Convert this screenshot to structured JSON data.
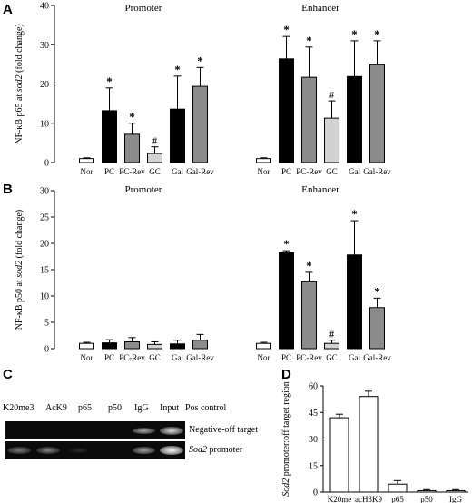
{
  "panels": {
    "a": "A",
    "b": "B",
    "c": "C",
    "d": "D"
  },
  "shared_categories": [
    "Nor",
    "PC",
    "PC-Rev",
    "GC",
    "Gal",
    "Gal-Rev"
  ],
  "colors": {
    "Nor": "#ffffff",
    "PC": "#000000",
    "PC-Rev": "#8c8c8c",
    "GC": "#d2d2d2",
    "Gal": "#000000",
    "Gal-Rev": "#8c8c8c",
    "white": "#ffffff"
  },
  "chart_data": [
    {
      "panel": "A",
      "type": "bar",
      "ylabel": "NF-κB p65 at sod2 (fold change)",
      "ylim": [
        0,
        40
      ],
      "yticks": [
        0,
        10,
        20,
        30,
        40
      ],
      "groups": [
        {
          "name": "Promoter",
          "categories": [
            "Nor",
            "PC",
            "PC-Rev",
            "GC",
            "Gal",
            "Gal-Rev"
          ],
          "values": [
            1.0,
            13.2,
            7.2,
            2.3,
            13.6,
            19.4
          ],
          "errors": [
            0.2,
            5.8,
            2.8,
            1.7,
            8.4,
            4.8
          ],
          "annotations": [
            "",
            "*",
            "*",
            "#",
            "*",
            "*"
          ]
        },
        {
          "name": "Enhancer",
          "categories": [
            "Nor",
            "PC",
            "PC-Rev",
            "GC",
            "Gal",
            "Gal-Rev"
          ],
          "values": [
            1.0,
            26.4,
            21.7,
            11.3,
            21.9,
            24.9
          ],
          "errors": [
            0.2,
            5.7,
            7.7,
            4.4,
            9.1,
            6.1
          ],
          "annotations": [
            "",
            "*",
            "*",
            "#",
            "*",
            "*"
          ]
        }
      ]
    },
    {
      "panel": "B",
      "type": "bar",
      "ylabel": "NF-κB p50 at sod2 (fold change)",
      "ylim": [
        0,
        30
      ],
      "yticks": [
        0,
        5,
        10,
        15,
        20,
        25,
        30
      ],
      "groups": [
        {
          "name": "Promoter",
          "categories": [
            "Nor",
            "PC",
            "PC-Rev",
            "GC",
            "Gal",
            "Gal-Rev"
          ],
          "values": [
            1.0,
            1.1,
            1.3,
            0.8,
            0.9,
            1.6
          ],
          "errors": [
            0.2,
            0.6,
            0.8,
            0.5,
            0.7,
            1.1
          ],
          "annotations": [
            "",
            "",
            "",
            "",
            "",
            ""
          ]
        },
        {
          "name": "Enhancer",
          "categories": [
            "Nor",
            "PC",
            "PC-Rev",
            "GC",
            "Gal",
            "Gal-Rev"
          ],
          "values": [
            1.0,
            18.2,
            12.7,
            1.0,
            17.8,
            7.8
          ],
          "errors": [
            0.2,
            0.4,
            1.8,
            0.6,
            6.5,
            1.8
          ],
          "annotations": [
            "",
            "*",
            "*",
            "#",
            "*",
            "*"
          ]
        }
      ]
    },
    {
      "panel": "D",
      "type": "bar",
      "ylabel": "Sod2 promoter:off target region",
      "ylim": [
        0,
        60
      ],
      "yticks": [
        0,
        15,
        30,
        45,
        60
      ],
      "categories": [
        "K20me",
        "acH3K9",
        "p65",
        "p50",
        "IgG"
      ],
      "values": [
        42,
        54,
        4.5,
        0.8,
        0.8
      ],
      "errors": [
        2,
        3,
        2,
        0.6,
        0.6
      ]
    }
  ],
  "gel": {
    "lanes": [
      "K20me3",
      "AcK9",
      "p65",
      "p50",
      "IgG",
      "Input",
      "Pos control"
    ],
    "rows": [
      {
        "label": "Negative-off target",
        "label_parts": [
          "",
          "Negative-off target"
        ],
        "intensities": [
          0,
          0,
          0,
          0,
          0,
          0.65,
          0.85
        ]
      },
      {
        "label": "Sod2 promoter",
        "label_parts": [
          "Sod2",
          " promoter"
        ],
        "intensities": [
          0.45,
          0.5,
          0.12,
          0,
          0,
          0.6,
          0.95
        ]
      }
    ]
  }
}
